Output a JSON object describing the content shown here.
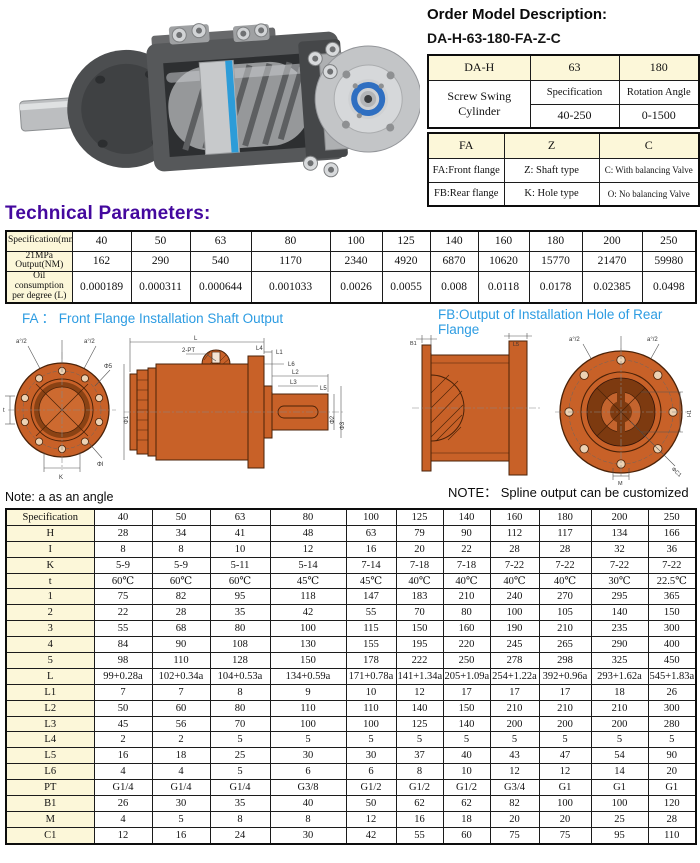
{
  "order": {
    "title": "Order Model Description:",
    "model": "DA-H-63-180-FA-Z-C",
    "grid": {
      "code": "DA-H",
      "size": "63",
      "angle": "180",
      "product": "Screw Swing Cylinder",
      "spec_label": "Specification",
      "spec_value": "40-250",
      "rot_label": "Rotation Angle",
      "rot_value": "0-1500",
      "fa": "FA",
      "z": "Z",
      "c": "C",
      "fa_desc": "FA:Front flange",
      "z_desc": "Z: Shaft type",
      "c_desc": "C: With balancing Valve",
      "fb_desc": "FB:Rear flange",
      "k_desc": "K: Hole type",
      "o_desc": "O: No balancing Valve"
    }
  },
  "tech": {
    "title": "Technical Parameters:",
    "header": [
      "Specification(mm)",
      "40",
      "50",
      "63",
      "80",
      "100",
      "125",
      "140",
      "160",
      "180",
      "200",
      "250"
    ],
    "rows": [
      [
        "21MPa Output(NM)",
        "162",
        "290",
        "540",
        "1170",
        "2340",
        "4920",
        "6870",
        "10620",
        "15770",
        "21470",
        "59980"
      ],
      [
        "Oil consumption per degree (L)",
        "0.000189",
        "0.000311",
        "0.000644",
        "0.001033",
        "0.0026",
        "0.0055",
        "0.008",
        "0.0118",
        "0.0178",
        "0.02385",
        "0.0498"
      ]
    ]
  },
  "sections": {
    "fa_label": "FA ： Front Flange Installation Shaft Output",
    "fb_label": "FB:Output of Installation Hole of Rear Flange",
    "note_left": "Note: a as an angle",
    "note_right": "NOTE： Spline output can be customized"
  },
  "dims": {
    "l": "L",
    "l1": "L1",
    "l2": "L2",
    "l3": "L3",
    "l4": "L4",
    "l5": "L5",
    "l6": "L6",
    "pt": "2-PT",
    "phi1": "Φ1",
    "phi2": "Φ2",
    "phi3": "Φ3",
    "phi5": "Φ5",
    "phiI": "ΦI",
    "a2": "a°/2",
    "k": "K",
    "t": "t",
    "b1": "B1",
    "h1": "H1",
    "m": "M",
    "c1": "ΦC1"
  },
  "spec_table": {
    "header": [
      "Specification",
      "40",
      "50",
      "63",
      "80",
      "100",
      "125",
      "140",
      "160",
      "180",
      "200",
      "250"
    ],
    "rows": [
      [
        "H",
        "28",
        "34",
        "41",
        "48",
        "63",
        "79",
        "90",
        "112",
        "117",
        "134",
        "166"
      ],
      [
        "I",
        "8",
        "8",
        "10",
        "12",
        "16",
        "20",
        "22",
        "28",
        "28",
        "32",
        "36"
      ],
      [
        "K",
        "5-9",
        "5-9",
        "5-11",
        "5-14",
        "7-14",
        "7-18",
        "7-18",
        "7-22",
        "7-22",
        "7-22",
        "7-22"
      ],
      [
        "t",
        "60℃",
        "60℃",
        "60℃",
        "45℃",
        "45℃",
        "40℃",
        "40℃",
        "40℃",
        "40℃",
        "30℃",
        "22.5℃"
      ],
      [
        "1",
        "75",
        "82",
        "95",
        "118",
        "147",
        "183",
        "210",
        "240",
        "270",
        "295",
        "365"
      ],
      [
        "2",
        "22",
        "28",
        "35",
        "42",
        "55",
        "70",
        "80",
        "100",
        "105",
        "140",
        "150"
      ],
      [
        "3",
        "55",
        "68",
        "80",
        "100",
        "115",
        "150",
        "160",
        "190",
        "210",
        "235",
        "300"
      ],
      [
        "4",
        "84",
        "90",
        "108",
        "130",
        "155",
        "195",
        "220",
        "245",
        "265",
        "290",
        "400"
      ],
      [
        "5",
        "98",
        "110",
        "128",
        "150",
        "178",
        "222",
        "250",
        "278",
        "298",
        "325",
        "450"
      ],
      [
        "L",
        "99+0.28a",
        "102+0.34a",
        "104+0.53a",
        "134+0.59a",
        "171+0.78a",
        "141+1.34a",
        "205+1.09a",
        "254+1.22a",
        "392+0.96a",
        "293+1.62a",
        "545+1.83a"
      ],
      [
        "L1",
        "7",
        "7",
        "8",
        "9",
        "10",
        "12",
        "17",
        "17",
        "17",
        "18",
        "26"
      ],
      [
        "L2",
        "50",
        "60",
        "80",
        "110",
        "110",
        "140",
        "150",
        "210",
        "210",
        "210",
        "300"
      ],
      [
        "L3",
        "45",
        "56",
        "70",
        "100",
        "100",
        "125",
        "140",
        "200",
        "200",
        "200",
        "280"
      ],
      [
        "L4",
        "2",
        "2",
        "5",
        "5",
        "5",
        "5",
        "5",
        "5",
        "5",
        "5",
        "5"
      ],
      [
        "L5",
        "16",
        "18",
        "25",
        "30",
        "30",
        "37",
        "40",
        "43",
        "47",
        "54",
        "90"
      ],
      [
        "L6",
        "4",
        "4",
        "5",
        "6",
        "6",
        "8",
        "10",
        "12",
        "12",
        "14",
        "20"
      ],
      [
        "PT",
        "G1/4",
        "G1/4",
        "G1/4",
        "G3/8",
        "G1/2",
        "G1/2",
        "G1/2",
        "G3/4",
        "G1",
        "G1",
        "G1"
      ],
      [
        "B1",
        "26",
        "30",
        "35",
        "40",
        "50",
        "62",
        "62",
        "82",
        "100",
        "100",
        "120"
      ],
      [
        "M",
        "4",
        "5",
        "8",
        "8",
        "12",
        "16",
        "18",
        "20",
        "20",
        "25",
        "28"
      ],
      [
        "C1",
        "12",
        "16",
        "24",
        "30",
        "42",
        "55",
        "60",
        "75",
        "75",
        "95",
        "110"
      ]
    ]
  },
  "colors": {
    "accent_purple": "#44089e",
    "accent_blue": "#2d9ce2",
    "table_label_bg": "#fcf7d9",
    "drawing_orange": "#c86128"
  }
}
